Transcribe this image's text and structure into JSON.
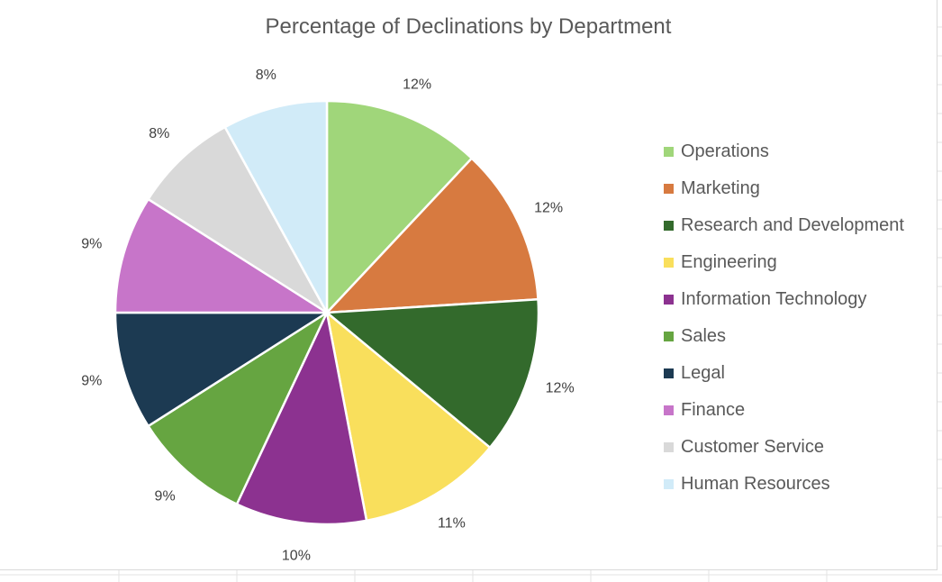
{
  "chart_data": {
    "type": "pie",
    "title": "Percentage of Declinations by Department",
    "legend_position": "right",
    "slices": [
      {
        "label": "Operations",
        "percent_label": "12%",
        "value": 12,
        "color": "#a0d67a"
      },
      {
        "label": "Marketing",
        "percent_label": "12%",
        "value": 12,
        "color": "#d77a40"
      },
      {
        "label": "Research and Development",
        "percent_label": "12%",
        "value": 12,
        "color": "#336a2c"
      },
      {
        "label": "Engineering",
        "percent_label": "11%",
        "value": 11,
        "color": "#f9df5c"
      },
      {
        "label": "Information Technology",
        "percent_label": "10%",
        "value": 10,
        "color": "#8c3290"
      },
      {
        "label": "Sales",
        "percent_label": "9%",
        "value": 9,
        "color": "#66a541"
      },
      {
        "label": "Legal",
        "percent_label": "9%",
        "value": 9,
        "color": "#1c3a52"
      },
      {
        "label": "Finance",
        "percent_label": "9%",
        "value": 9,
        "color": "#c775c9"
      },
      {
        "label": "Customer Service",
        "percent_label": "8%",
        "value": 8,
        "color": "#d9d9d9"
      },
      {
        "label": "Human Resources",
        "percent_label": "8%",
        "value": 8,
        "color": "#d1ebf8"
      }
    ]
  }
}
